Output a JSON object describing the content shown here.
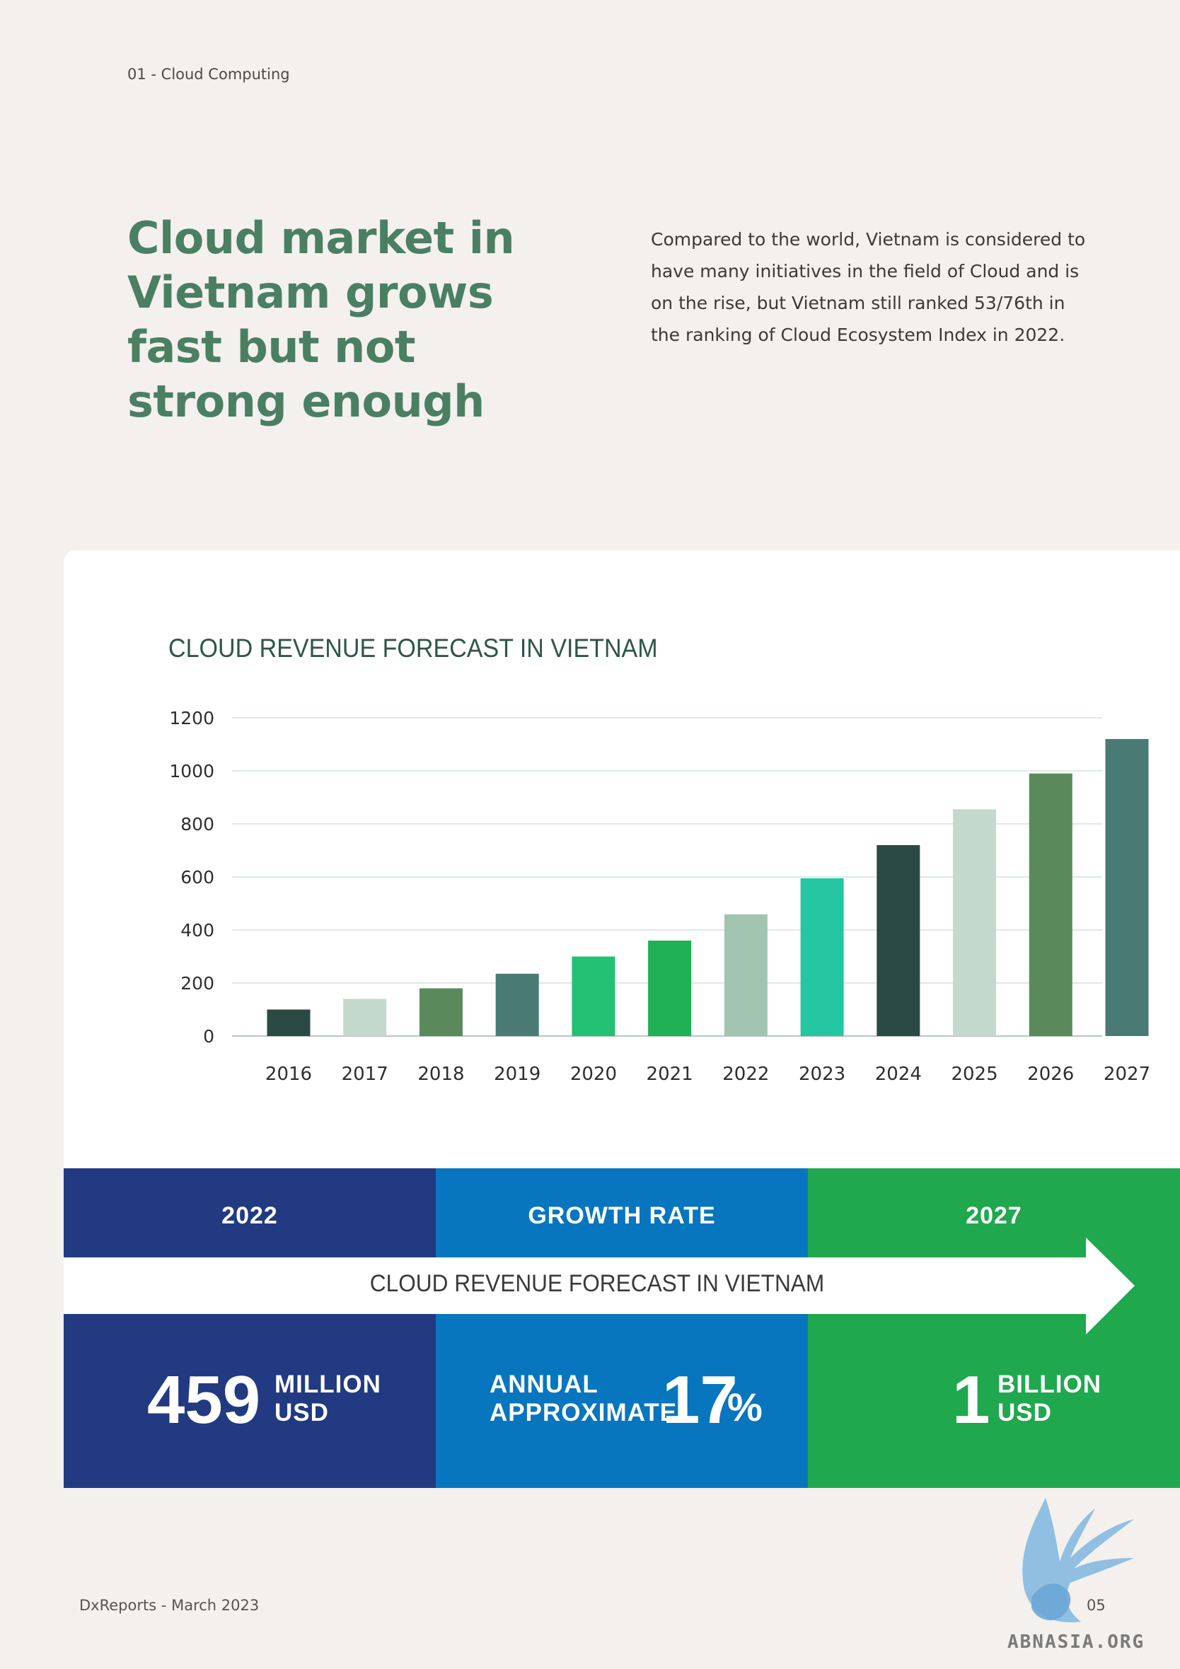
{
  "header": {
    "breadcrumb": "01 - Cloud Computing"
  },
  "main": {
    "title": "Cloud market in Vietnam grows fast but not strong enough",
    "intro": "Compared to the world, Vietnam is considered to have many initiatives in the field of Cloud and is on the rise, but Vietnam still ranked 53/76th in the ranking of Cloud Ecosystem Index in 2022."
  },
  "chart_data": {
    "type": "bar",
    "title": "CLOUD REVENUE FORECAST IN VIETNAM",
    "categories": [
      "2016",
      "2017",
      "2018",
      "2019",
      "2020",
      "2021",
      "2022",
      "2023",
      "2024",
      "2025",
      "2026",
      "2027"
    ],
    "values": [
      100,
      140,
      180,
      235,
      300,
      360,
      459,
      595,
      720,
      855,
      990,
      1120
    ],
    "bar_colors": [
      "#2b4a43",
      "#c4d9cd",
      "#5a8a5c",
      "#4a7a74",
      "#22c173",
      "#20b055",
      "#a1c5b0",
      "#24c6a2",
      "#2b4a43",
      "#c4d9cd",
      "#5a8a5c",
      "#4a7a74"
    ],
    "ylim": [
      0,
      1200
    ],
    "yticks": [
      0,
      200,
      400,
      600,
      800,
      1000,
      1200
    ],
    "xlabel": "",
    "ylabel": "",
    "grid": true
  },
  "summary": {
    "arrow_label": "CLOUD REVENUE FORECAST IN VIETNAM",
    "col1": {
      "header": "2022",
      "value": "459",
      "unit_line1": "MILLION",
      "unit_line2": "USD",
      "color": "#213a82"
    },
    "col2": {
      "header": "GROWTH RATE",
      "prefix_line1": "ANNUAL",
      "prefix_line2": "APPROXIMATE",
      "value": "17",
      "suffix": "%",
      "color": "#0876bf"
    },
    "col3": {
      "header": "2027",
      "value": "1",
      "unit_line1": "BILLION",
      "unit_line2": "USD",
      "color": "#1fa84e"
    }
  },
  "footer": {
    "source": "DxReports - March 2023",
    "page": "05"
  },
  "watermark": {
    "text": "ABNASIA.ORG",
    "icon": "griffin-logo-icon"
  }
}
